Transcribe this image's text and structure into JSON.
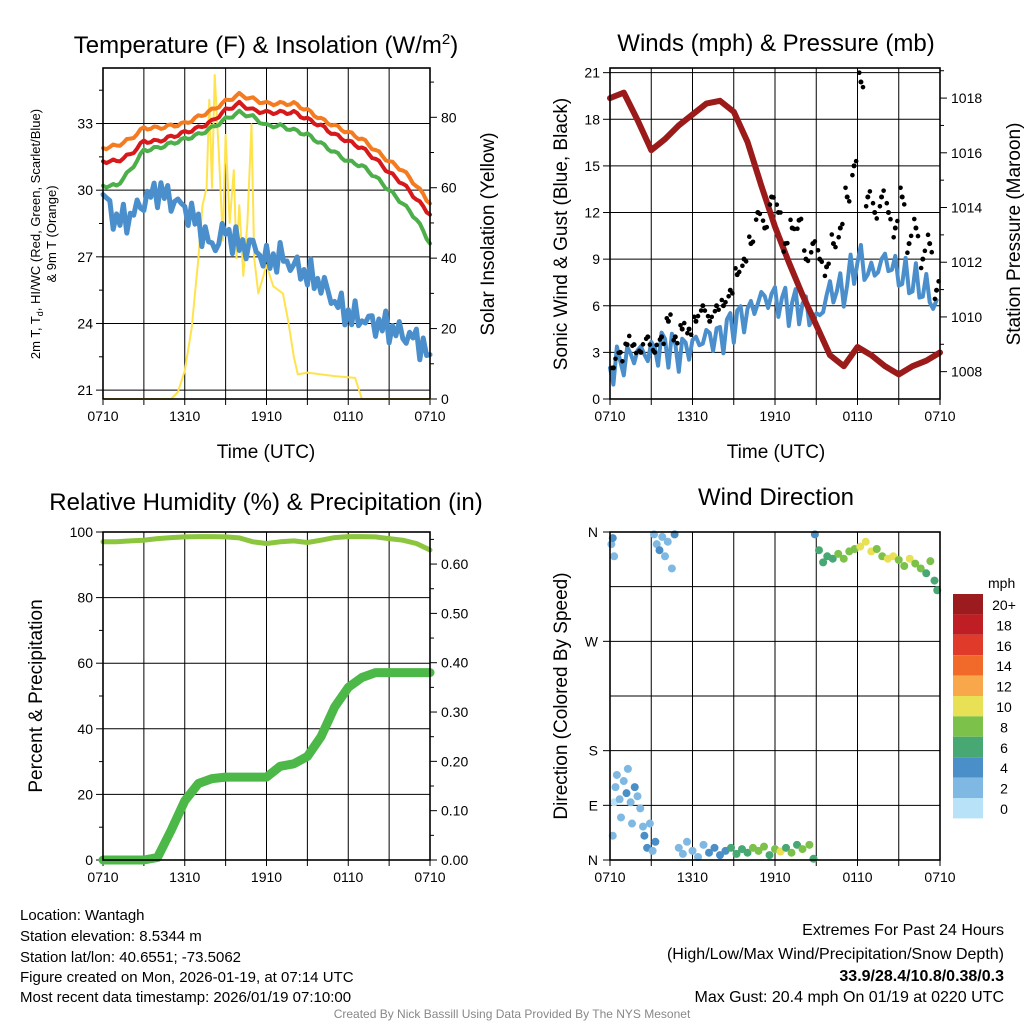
{
  "colors": {
    "orange": "#f47b20",
    "red": "#d7191c",
    "green": "#4daf4a",
    "blue": "#4a8fcc",
    "yellow": "#ffe34d",
    "maroon": "#9b1b1b",
    "black": "#000000",
    "rh": "#8cc63f",
    "precip": "#4cb848",
    "extremes": "#d7191c",
    "credit": "#888888"
  },
  "chart_data": [
    {
      "type": "line",
      "title_main": "Temperature (F) & Insolation (W/m",
      "title_sup": "2",
      "title_end": ")",
      "xlabel": "Time (UTC)",
      "ylabel_line1": "2m T, T",
      "ylabel_sub": "d",
      "ylabel_line1_end": ", HI/WC (Red, Green, Scarlet/Blue)",
      "ylabel_line2": "& 9m T (Orange)",
      "y2label": "Solar Insolation (Yellow)",
      "xticks": [
        "0710",
        "1310",
        "1910",
        "0110",
        "0710"
      ],
      "xlim": [
        0,
        24
      ],
      "ylim": [
        20.6,
        35.5
      ],
      "y2lim": [
        0,
        94
      ],
      "yticks": [
        21,
        24,
        27,
        30,
        33
      ],
      "y2ticks": [
        0,
        20,
        40,
        60,
        80
      ],
      "x_hours": [
        0,
        1,
        2,
        3,
        4,
        5,
        6,
        7,
        8,
        9,
        10,
        11,
        12,
        13,
        14,
        15,
        16,
        17,
        18,
        19,
        20,
        21,
        22,
        23,
        24
      ],
      "series": [
        {
          "name": "9m T",
          "color": "orange",
          "values": [
            31.9,
            32.0,
            32.3,
            32.8,
            32.8,
            32.9,
            33.0,
            33.3,
            33.6,
            34.0,
            34.3,
            34.1,
            33.9,
            33.9,
            33.9,
            33.6,
            33.2,
            32.9,
            32.6,
            32.3,
            31.8,
            31.3,
            30.9,
            30.2,
            29.4
          ]
        },
        {
          "name": "2m T",
          "color": "red",
          "values": [
            31.3,
            31.3,
            31.6,
            32.2,
            32.2,
            32.4,
            32.6,
            32.8,
            33.1,
            33.6,
            33.9,
            33.6,
            33.5,
            33.5,
            33.5,
            33.2,
            32.9,
            32.5,
            32.2,
            31.9,
            31.4,
            30.8,
            30.3,
            29.6,
            28.9
          ]
        },
        {
          "name": "HI/WC",
          "color": "green",
          "values": [
            30.2,
            30.2,
            30.9,
            31.8,
            31.9,
            32.1,
            32.3,
            32.5,
            32.8,
            33.2,
            33.5,
            33.3,
            32.9,
            32.9,
            32.7,
            32.5,
            32.1,
            31.7,
            31.3,
            31.1,
            30.6,
            30.0,
            29.4,
            28.7,
            27.6
          ]
        },
        {
          "name": "Td",
          "color": "blue",
          "values": [
            29.8,
            28.6,
            28.8,
            29.5,
            30.0,
            29.6,
            29.2,
            28.5,
            27.4,
            28.2,
            27.5,
            27.5,
            26.8,
            27.0,
            26.6,
            26.2,
            25.8,
            25.0,
            24.4,
            24.2,
            24.0,
            23.8,
            23.5,
            23.3,
            22.6
          ]
        }
      ],
      "solar": [
        [
          0,
          0
        ],
        [
          5,
          0
        ],
        [
          5.5,
          2
        ],
        [
          6,
          8
        ],
        [
          6.5,
          20
        ],
        [
          7,
          40
        ],
        [
          7.3,
          55
        ],
        [
          7.6,
          60
        ],
        [
          7.8,
          85
        ],
        [
          8,
          60
        ],
        [
          8.2,
          92
        ],
        [
          8.5,
          70
        ],
        [
          8.8,
          45
        ],
        [
          9,
          75
        ],
        [
          9.3,
          50
        ],
        [
          9.6,
          65
        ],
        [
          9.8,
          40
        ],
        [
          10,
          55
        ],
        [
          10.3,
          35
        ],
        [
          10.6,
          50
        ],
        [
          10.9,
          78
        ],
        [
          11.1,
          40
        ],
        [
          11.4,
          30
        ],
        [
          12,
          38
        ],
        [
          12.5,
          32
        ],
        [
          13.2,
          30
        ],
        [
          13.6,
          22
        ],
        [
          14,
          12
        ],
        [
          14.3,
          7
        ],
        [
          15,
          7.5
        ],
        [
          17,
          6.5
        ],
        [
          18.5,
          6
        ],
        [
          19,
          0
        ],
        [
          24,
          0
        ]
      ]
    },
    {
      "type": "line",
      "title": "Winds (mph) & Pressure (mb)",
      "xlabel": "Time (UTC)",
      "ylabel": "Sonic Wind & Gust (Blue, Black)",
      "y2label": "Station Pressure (Maroon)",
      "xticks": [
        "0710",
        "1310",
        "1910",
        "0110",
        "0710"
      ],
      "xlim": [
        0,
        24
      ],
      "ylim": [
        0,
        21.3
      ],
      "y2lim": [
        1007.0,
        1019.1
      ],
      "yticks": [
        0,
        3,
        6,
        9,
        12,
        15,
        18,
        21
      ],
      "y2ticks": [
        1008,
        1010,
        1012,
        1014,
        1016,
        1018
      ],
      "x_hours": [
        0,
        1,
        2,
        3,
        4,
        5,
        6,
        7,
        8,
        9,
        10,
        11,
        12,
        13,
        14,
        15,
        16,
        17,
        18,
        19,
        20,
        21,
        22,
        23,
        24
      ],
      "pressure": [
        1018.0,
        1018.2,
        1017.2,
        1016.1,
        1016.5,
        1017.0,
        1017.4,
        1017.8,
        1017.9,
        1017.5,
        1016.4,
        1014.8,
        1013.3,
        1012.0,
        1010.8,
        1009.7,
        1008.6,
        1008.2,
        1008.9,
        1008.6,
        1008.2,
        1007.9,
        1008.2,
        1008.4,
        1008.7
      ],
      "wind": [
        2,
        2.5,
        3,
        3,
        3.5,
        3,
        3.5,
        4,
        4,
        5,
        5.5,
        6.5,
        6.5,
        6,
        6,
        5,
        7,
        7,
        9,
        8,
        9,
        8,
        7.5,
        7,
        5.5
      ],
      "gust": [
        2,
        3,
        3.5,
        3.5,
        3,
        4,
        3,
        4,
        5,
        4,
        4.5,
        4.5,
        5,
        6,
        5,
        6,
        6,
        7,
        8,
        9,
        10,
        12,
        11,
        13,
        12,
        10,
        11,
        11.5,
        9,
        10,
        9,
        8.5,
        10,
        11,
        13,
        15,
        20.4,
        13,
        12,
        13,
        12,
        11,
        13,
        10,
        11,
        9,
        10,
        7
      ]
    },
    {
      "type": "line",
      "title": "Relative Humidity (%) & Precipitation (in)",
      "ylabel": "Percent & Precipitation",
      "xticks": [
        "0710",
        "1310",
        "1910",
        "0110",
        "0710"
      ],
      "xlim": [
        0,
        24
      ],
      "ylim": [
        0,
        100
      ],
      "y2lim": [
        0,
        0.665
      ],
      "yticks": [
        0,
        20,
        40,
        60,
        80,
        100
      ],
      "y2ticks": [
        "0.00",
        "0.10",
        "0.20",
        "0.30",
        "0.40",
        "0.50",
        "0.60"
      ],
      "x_hours": [
        0,
        1,
        2,
        3,
        4,
        5,
        6,
        7,
        8,
        9,
        10,
        11,
        12,
        13,
        14,
        15,
        16,
        17,
        18,
        19,
        20,
        21,
        22,
        23,
        24
      ],
      "rh": [
        97,
        97,
        97.3,
        97.5,
        98,
        98.3,
        98.5,
        98.6,
        98.6,
        98.5,
        98.2,
        97,
        96.5,
        97,
        97.3,
        96.8,
        97.5,
        98.3,
        98.6,
        98.6,
        98.5,
        98,
        97.5,
        96.5,
        94.5
      ],
      "precip": [
        0,
        0,
        0,
        0,
        0.005,
        0.06,
        0.12,
        0.155,
        0.165,
        0.168,
        0.168,
        0.168,
        0.168,
        0.19,
        0.195,
        0.21,
        0.25,
        0.31,
        0.35,
        0.37,
        0.38,
        0.38,
        0.38,
        0.38,
        0.38
      ]
    },
    {
      "type": "scatter",
      "title": "Wind Direction",
      "ylabel": "Direction (Colored By Speed)",
      "xticks": [
        "0710",
        "1310",
        "1910",
        "0110",
        "0710"
      ],
      "xlim": [
        0,
        24
      ],
      "yticks": [
        {
          "label": "N",
          "deg": 360
        },
        {
          "label": "W",
          "deg": 270
        },
        {
          "label": "S",
          "deg": 180
        },
        {
          "label": "E",
          "deg": 90
        },
        {
          "label": "N",
          "deg": 0
        }
      ],
      "colorbar": {
        "title": "mph",
        "labels": [
          "20+",
          "18",
          "16",
          "14",
          "12",
          "10",
          "8",
          "6",
          "4",
          "2",
          "0"
        ],
        "colors": [
          "#9b1b1e",
          "#bf1e24",
          "#e03a2a",
          "#f26a2a",
          "#f8a84a",
          "#e8e055",
          "#7cc14a",
          "#48a873",
          "#4a8fc7",
          "#7fb9e3",
          "#b7e2f7"
        ]
      },
      "points": [
        [
          0.1,
          350,
          2
        ],
        [
          0.2,
          40,
          2
        ],
        [
          0.3,
          95,
          1
        ],
        [
          0.4,
          120,
          2
        ],
        [
          0.5,
          140,
          3
        ],
        [
          0.7,
          100,
          3
        ],
        [
          0.8,
          70,
          2
        ],
        [
          1,
          130,
          3
        ],
        [
          1.2,
          110,
          4
        ],
        [
          1.3,
          150,
          2
        ],
        [
          1.5,
          95,
          3
        ],
        [
          1.6,
          60,
          2
        ],
        [
          1.8,
          120,
          4
        ],
        [
          2,
          105,
          3
        ],
        [
          2.2,
          85,
          2
        ],
        [
          2.4,
          55,
          3
        ],
        [
          2.5,
          40,
          4
        ],
        [
          2.7,
          20,
          4
        ],
        [
          2.9,
          60,
          2
        ],
        [
          3.1,
          15,
          3
        ],
        [
          3.3,
          30,
          4
        ],
        [
          0.2,
          355,
          4
        ],
        [
          0.3,
          340,
          3
        ],
        [
          3.2,
          358,
          3
        ],
        [
          3.4,
          350,
          2
        ],
        [
          3.6,
          345,
          4
        ],
        [
          3.8,
          356,
          3
        ],
        [
          4,
          340,
          3
        ],
        [
          4.2,
          352,
          2
        ],
        [
          4.5,
          330,
          3
        ],
        [
          4.7,
          358,
          4
        ],
        [
          5,
          20,
          3
        ],
        [
          5.3,
          10,
          3
        ],
        [
          5.6,
          30,
          2
        ],
        [
          6,
          15,
          2
        ],
        [
          6.4,
          5,
          3
        ],
        [
          6.8,
          25,
          3
        ],
        [
          7.2,
          12,
          4
        ],
        [
          7.6,
          20,
          4
        ],
        [
          8,
          8,
          5
        ],
        [
          8.4,
          15,
          5
        ],
        [
          8.8,
          20,
          6
        ],
        [
          9.2,
          10,
          6
        ],
        [
          9.6,
          18,
          7
        ],
        [
          10,
          12,
          6
        ],
        [
          10.4,
          20,
          8
        ],
        [
          10.8,
          15,
          8
        ],
        [
          11.2,
          22,
          9
        ],
        [
          11.6,
          8,
          7
        ],
        [
          12,
          18,
          8
        ],
        [
          12.4,
          14,
          10
        ],
        [
          12.8,
          20,
          7
        ],
        [
          13.2,
          12,
          8
        ],
        [
          13.6,
          25,
          7
        ],
        [
          14,
          18,
          8
        ],
        [
          14.5,
          25,
          9
        ],
        [
          14.8,
          2,
          6
        ],
        [
          14.9,
          358,
          5
        ],
        [
          15.2,
          345,
          6
        ],
        [
          15.5,
          335,
          6
        ],
        [
          15.8,
          340,
          7
        ],
        [
          16.2,
          338,
          7
        ],
        [
          16.6,
          342,
          8
        ],
        [
          17,
          338,
          9
        ],
        [
          17.4,
          344,
          8
        ],
        [
          17.8,
          346,
          9
        ],
        [
          18.2,
          348,
          10
        ],
        [
          18.6,
          352,
          11
        ],
        [
          19,
          344,
          10
        ],
        [
          19.4,
          346,
          9
        ],
        [
          19.8,
          340,
          8
        ],
        [
          20.2,
          338,
          10
        ],
        [
          20.6,
          340,
          11
        ],
        [
          21,
          337,
          9
        ],
        [
          21.4,
          332,
          8
        ],
        [
          21.8,
          338,
          10
        ],
        [
          22.2,
          334,
          9
        ],
        [
          22.6,
          330,
          8
        ],
        [
          23,
          326,
          7
        ],
        [
          23.3,
          336,
          8
        ],
        [
          23.6,
          320,
          6
        ],
        [
          23.8,
          312,
          6
        ]
      ]
    }
  ],
  "info": {
    "location": "Location: Wantagh",
    "elevation": "Station elevation: 8.5344 m",
    "latlon": "Station lat/lon: 40.6551; -73.5062",
    "created": "Figure created on Mon, 2026-01-19, at 07:14 UTC",
    "recent": "Most recent data timestamp: 2026/01/19 07:10:00"
  },
  "extremes": {
    "title": "Extremes For Past 24 Hours",
    "subtitle": "(High/Low/Max Wind/Precipitation/Snow Depth)",
    "values": "33.9/28.4/10.8/0.38/0.3",
    "gust": "Max Gust: 20.4 mph On 01/19 at 0220 UTC"
  },
  "credit": "Created By Nick Bassill Using Data Provided By The NYS Mesonet"
}
